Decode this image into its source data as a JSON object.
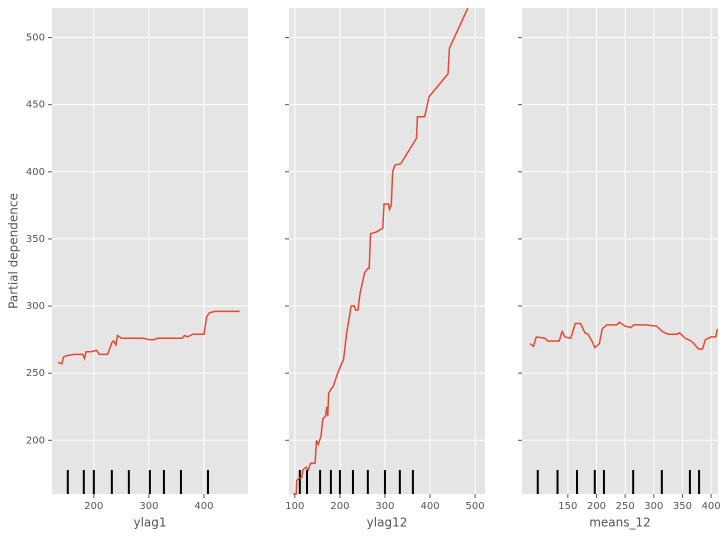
{
  "chart_data": [
    {
      "type": "line",
      "ylabel": "Partial dependence",
      "xlabel": "ylag1",
      "color": "#e24a33",
      "grid": true,
      "xlim": [
        124,
        480
      ],
      "xticks": [
        200,
        300,
        400
      ],
      "ylim": [
        160,
        522
      ],
      "yticks": [
        200,
        250,
        300,
        350,
        400,
        450,
        500
      ],
      "x": [
        135,
        142,
        145,
        150,
        165,
        180,
        183,
        186,
        195,
        205,
        210,
        225,
        233,
        236,
        240,
        243,
        250,
        290,
        300,
        310,
        315,
        360,
        365,
        370,
        375,
        380,
        400,
        405,
        410,
        420,
        450,
        465
      ],
      "values": [
        258,
        257,
        262,
        263,
        264,
        264,
        261,
        266,
        266,
        267,
        264,
        264,
        273,
        274,
        271,
        278,
        276,
        276,
        275,
        275,
        276,
        276,
        278,
        277,
        278,
        279,
        279,
        292,
        295,
        296,
        296,
        296
      ],
      "rug": [
        152.7,
        181.8,
        200,
        232.7,
        263.6,
        301.8,
        327.3,
        358.2,
        407.3
      ]
    },
    {
      "type": "line",
      "xlabel": "ylag12",
      "color": "#e24a33",
      "grid": true,
      "xlim": [
        87,
        522
      ],
      "xticks": [
        100,
        200,
        300,
        400,
        500
      ],
      "ylim": [
        160,
        522
      ],
      "yticks": [
        200,
        250,
        300,
        350,
        400,
        450,
        500
      ],
      "x": [
        96,
        103,
        104,
        110,
        115,
        118,
        125,
        130,
        135,
        145,
        148,
        152,
        158,
        162,
        168,
        171,
        173,
        175,
        180,
        185,
        195,
        205,
        208,
        215,
        225,
        232,
        235,
        240,
        245,
        255,
        262,
        265,
        268,
        280,
        295,
        298,
        308,
        310,
        314,
        317,
        322,
        335,
        370,
        372,
        388,
        398,
        440,
        443,
        484
      ],
      "values": [
        160,
        160,
        170,
        172,
        172,
        178,
        180,
        178,
        183,
        183,
        200,
        197,
        203,
        216,
        218,
        225,
        218,
        235,
        238,
        240,
        250,
        258,
        260,
        280,
        300,
        300,
        297,
        297,
        310,
        325,
        328,
        328,
        354,
        355,
        358,
        376,
        376,
        372,
        375,
        400,
        405,
        406,
        425,
        441,
        441,
        456,
        473,
        492,
        522
      ],
      "rug": [
        111,
        127,
        156,
        180,
        200,
        229,
        262,
        300,
        333,
        362
      ]
    },
    {
      "type": "line",
      "xlabel": "means_12",
      "color": "#e24a33",
      "grid": true,
      "xlim": [
        70,
        412
      ],
      "xticks": [
        150,
        200,
        250,
        300,
        350,
        400
      ],
      "ylim": [
        160,
        522
      ],
      "yticks": [
        200,
        250,
        300,
        350,
        400,
        450,
        500
      ],
      "x": [
        84,
        90,
        95,
        110,
        115,
        135,
        140,
        145,
        155,
        163,
        172,
        180,
        185,
        192,
        197,
        205,
        210,
        218,
        235,
        240,
        250,
        260,
        265,
        285,
        305,
        315,
        325,
        340,
        345,
        355,
        365,
        370,
        378,
        385,
        390,
        400,
        408,
        411
      ],
      "values": [
        272,
        270,
        277,
        276,
        274,
        274,
        281,
        277,
        276,
        287,
        287,
        280,
        279,
        274,
        269,
        272,
        283,
        286,
        286,
        288,
        285,
        284,
        286,
        286,
        285,
        281,
        279,
        279,
        280,
        276,
        274,
        272,
        268,
        268,
        275,
        277,
        277,
        283
      ],
      "rug": [
        97.5,
        132,
        166,
        197,
        213,
        264,
        314,
        363,
        379
      ]
    }
  ]
}
